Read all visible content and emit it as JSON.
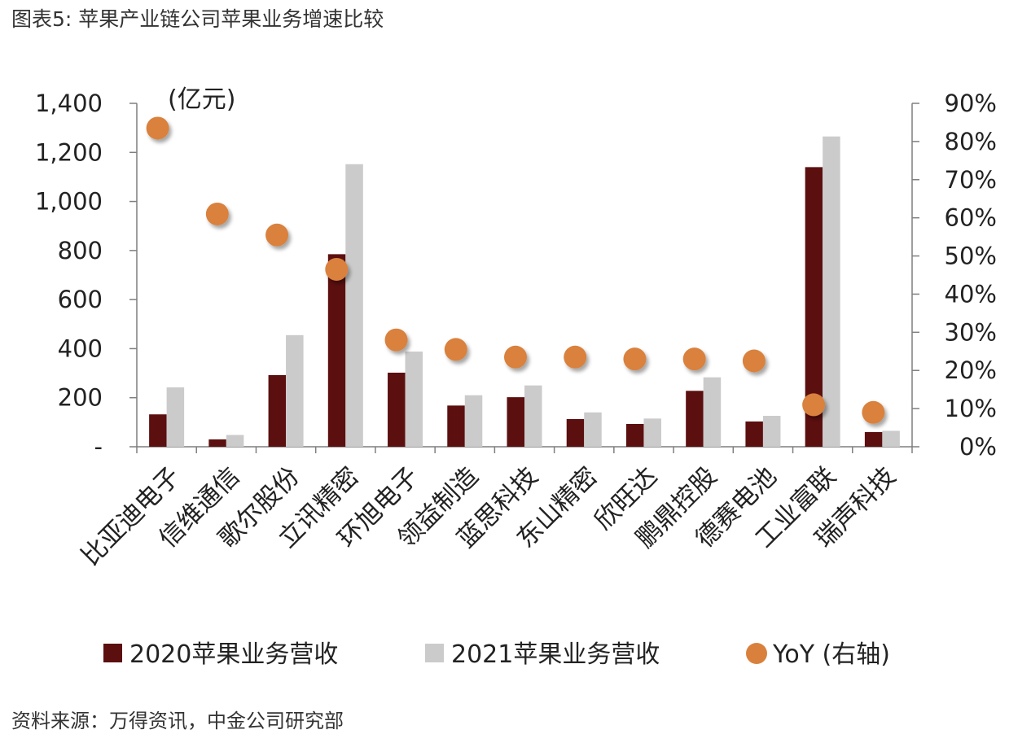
{
  "figure_title": "图表5: 苹果产业链公司苹果业务增速比较",
  "source": "资料来源：万得资讯，中金公司研究部",
  "colors": {
    "series_2020": "#5c0f0f",
    "series_2021": "#cbcbcb",
    "yoy": "#d9813c"
  },
  "chart_data": {
    "type": "bar",
    "title": "",
    "unit_label": "(亿元)",
    "categories": [
      "比亚迪电子",
      "信维通信",
      "歌尔股份",
      "立讯精密",
      "环旭电子",
      "领益制造",
      "蓝思科技",
      "东山精密",
      "欣旺达",
      "鹏鼎控股",
      "德赛电池",
      "工业富联",
      "瑞声科技"
    ],
    "series": [
      {
        "name": "2020苹果业务营收",
        "axis": "left",
        "kind": "bar",
        "values": [
          132,
          30,
          292,
          785,
          302,
          168,
          202,
          113,
          93,
          228,
          103,
          1140,
          60
        ]
      },
      {
        "name": "2021苹果业务营收",
        "axis": "left",
        "kind": "bar",
        "values": [
          242,
          48,
          455,
          1152,
          388,
          210,
          250,
          140,
          115,
          283,
          126,
          1265,
          65
        ]
      },
      {
        "name": "YoY (右轴)",
        "axis": "right",
        "kind": "scatter",
        "values": [
          83.5,
          61,
          55.5,
          46.5,
          28,
          25.5,
          23.5,
          23.5,
          23,
          23,
          22.5,
          11,
          9
        ]
      }
    ],
    "y_left": {
      "min": 0,
      "max": 1400,
      "ticks": [
        0,
        200,
        400,
        600,
        800,
        1000,
        1200,
        1400
      ],
      "tick_labels": [
        "-",
        "200",
        "400",
        "600",
        "800",
        "1,000",
        "1,200",
        "1,400"
      ]
    },
    "y_right": {
      "min": 0,
      "max": 90,
      "ticks": [
        0,
        10,
        20,
        30,
        40,
        50,
        60,
        70,
        80,
        90
      ],
      "tick_labels": [
        "0%",
        "10%",
        "20%",
        "30%",
        "40%",
        "50%",
        "60%",
        "70%",
        "80%",
        "90%"
      ]
    },
    "grid": false,
    "legend_placement": "bottom"
  }
}
